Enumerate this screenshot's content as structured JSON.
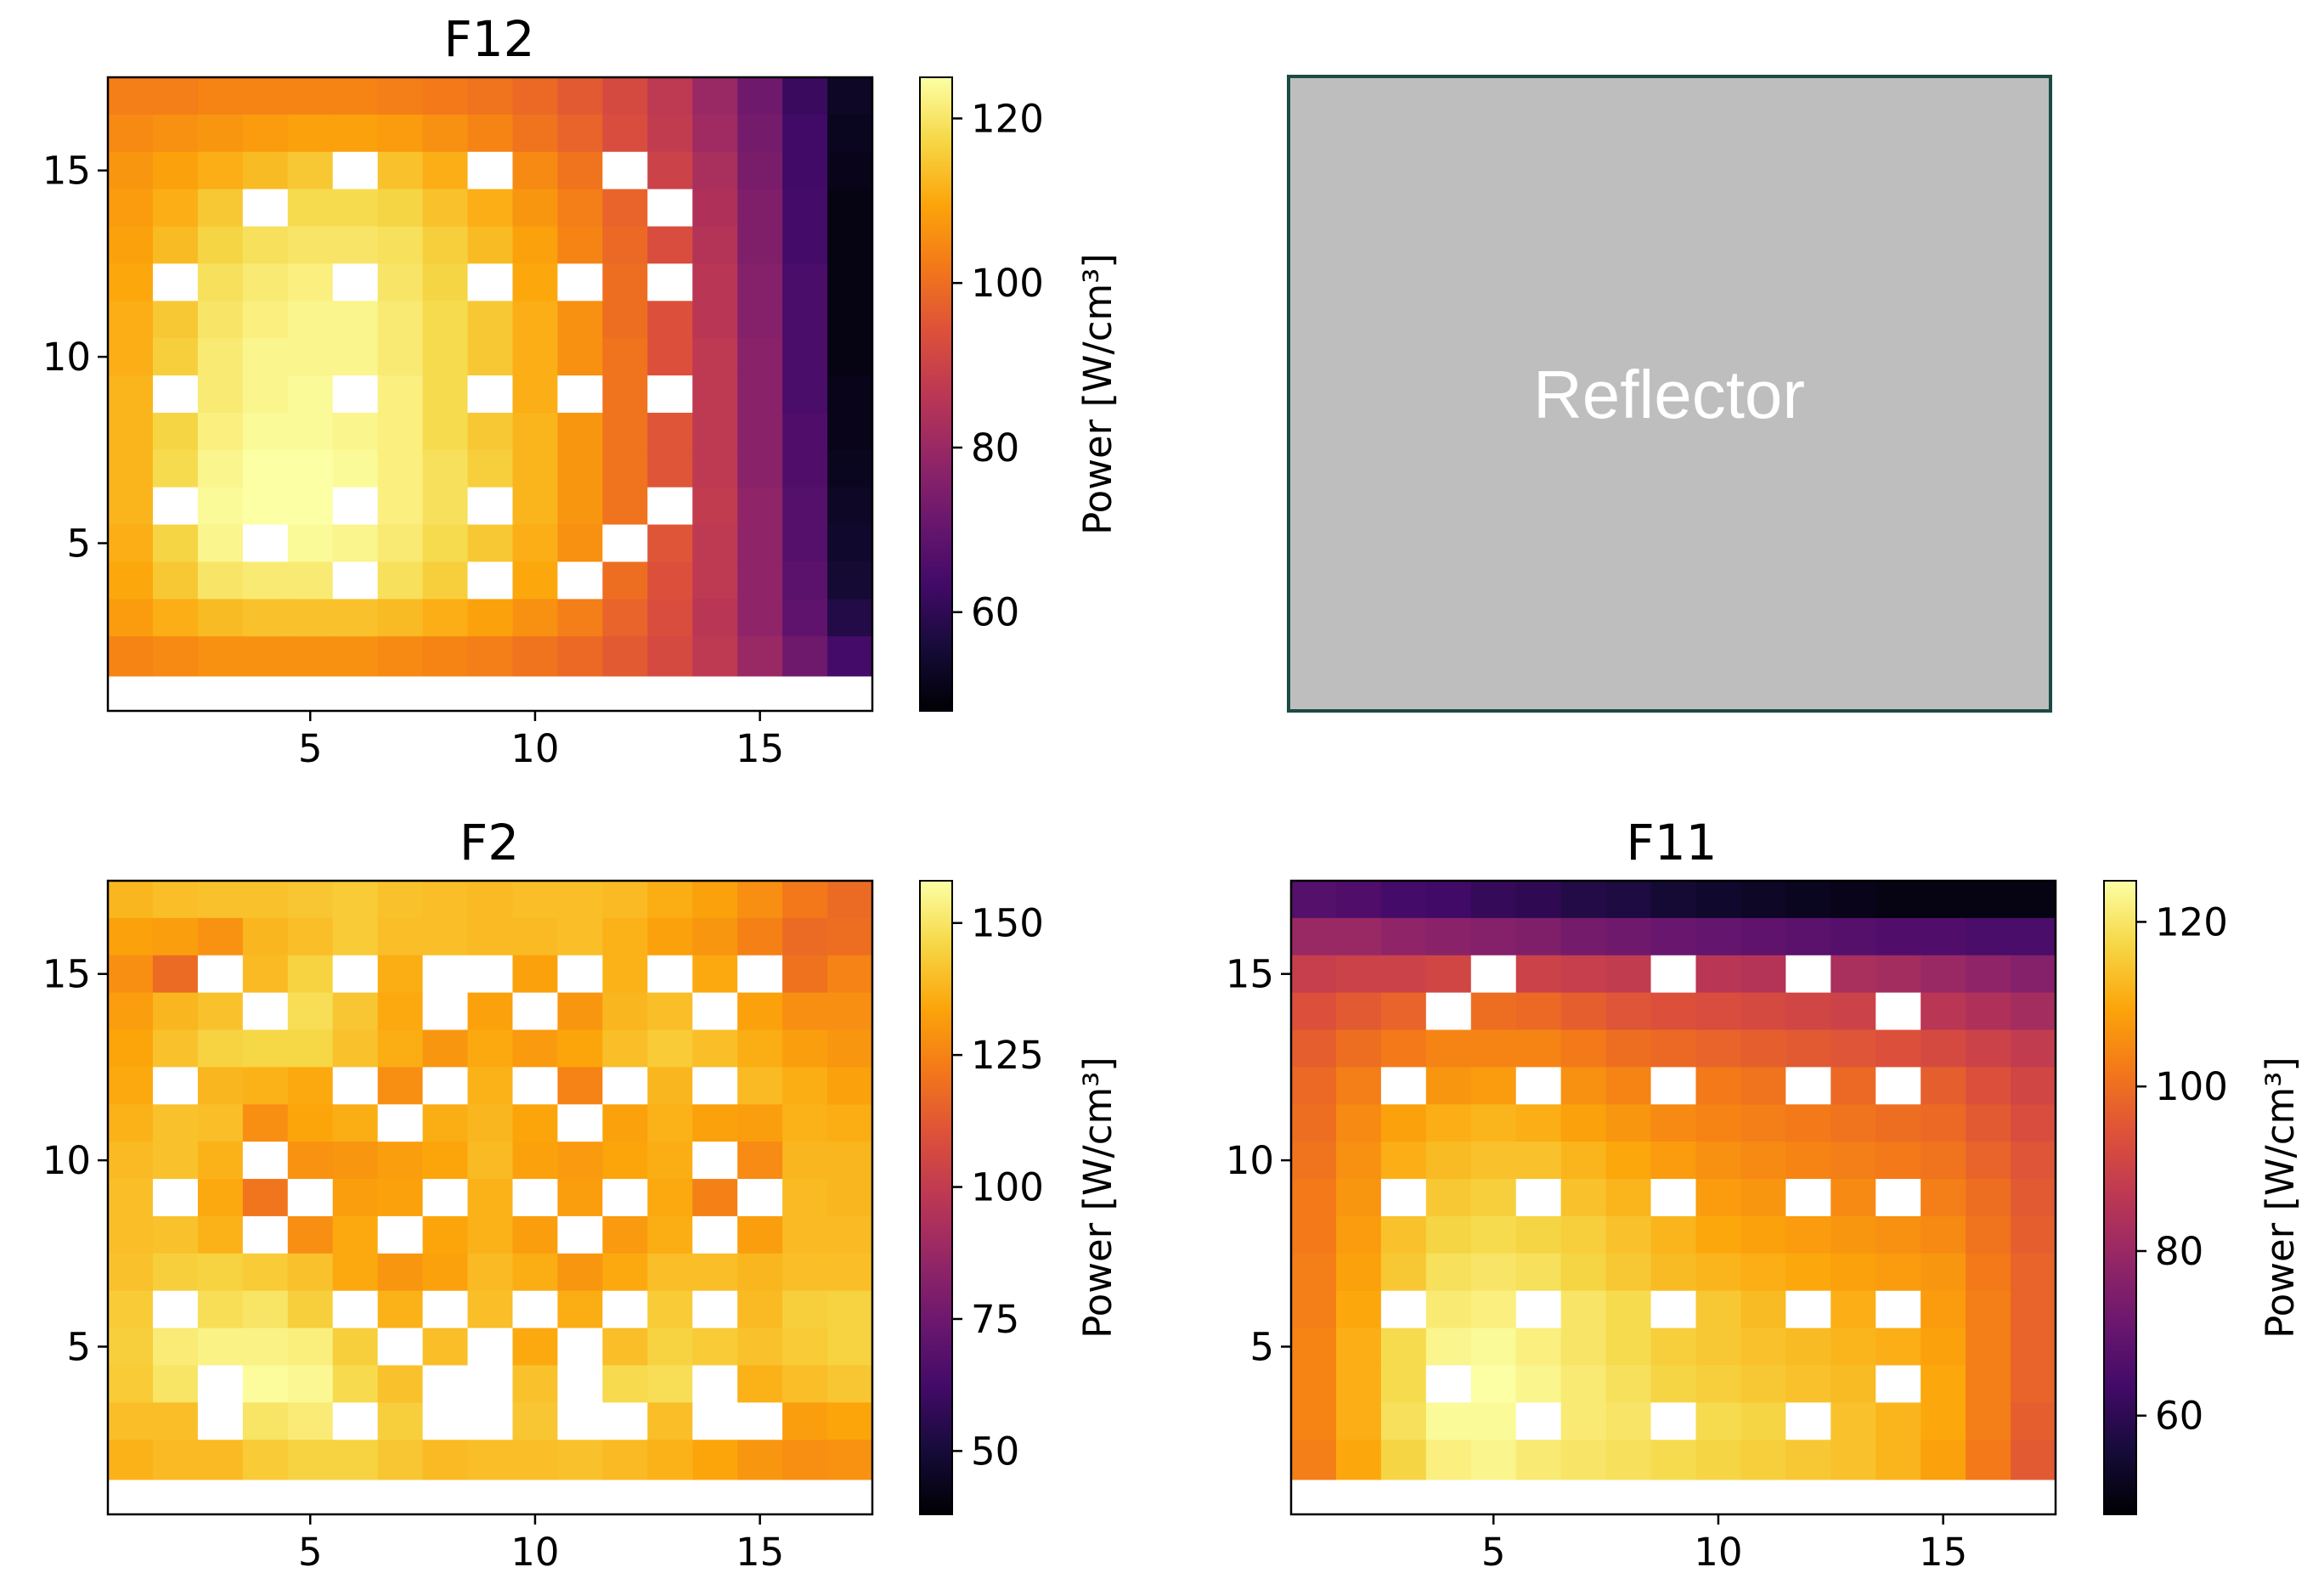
{
  "chart_data": [
    {
      "type": "heatmap",
      "title": "F12",
      "xlim": [
        0.5,
        17.5
      ],
      "ylim": [
        0.5,
        17.5
      ],
      "xticks": [
        5,
        10,
        15
      ],
      "yticks": [
        5,
        10,
        15
      ],
      "colormap": "inferno",
      "colorbar": {
        "label": "Power [W/cm³]",
        "min": 48,
        "max": 125,
        "ticks": [
          60,
          80,
          100,
          120
        ]
      },
      "grid": false,
      "rows_top_to_bottom": [
        [
          103,
          103,
          104,
          104,
          104,
          104,
          103,
          102,
          101,
          99,
          96,
          92,
          87,
          80,
          72,
          62,
          53
        ],
        [
          105,
          106,
          107,
          108,
          109,
          109,
          108,
          106,
          104,
          101,
          98,
          93,
          88,
          81,
          73,
          63,
          52
        ],
        [
          107,
          109,
          111,
          113,
          115,
          null,
          114,
          111,
          null,
          105,
          101,
          null,
          90,
          83,
          74,
          63,
          51
        ],
        [
          108,
          111,
          115,
          null,
          118,
          118,
          117,
          114,
          111,
          107,
          103,
          98,
          null,
          84,
          75,
          64,
          50
        ],
        [
          109,
          113,
          117,
          119,
          120,
          120,
          119,
          116,
          113,
          109,
          104,
          99,
          93,
          85,
          75,
          64,
          50
        ],
        [
          110,
          null,
          119,
          121,
          122,
          null,
          120,
          117,
          null,
          110,
          null,
          100,
          null,
          86,
          76,
          65,
          50
        ],
        [
          111,
          115,
          120,
          122,
          123,
          123,
          121,
          118,
          115,
          111,
          106,
          100,
          94,
          86,
          76,
          65,
          50
        ],
        [
          111,
          116,
          121,
          123,
          123,
          123,
          121,
          118,
          115,
          111,
          106,
          101,
          94,
          87,
          77,
          65,
          50
        ],
        [
          112,
          null,
          121,
          123,
          124,
          null,
          122,
          118,
          null,
          111,
          null,
          101,
          null,
          87,
          77,
          65,
          51
        ],
        [
          112,
          117,
          122,
          124,
          124,
          123,
          122,
          118,
          115,
          112,
          107,
          101,
          95,
          87,
          77,
          66,
          51
        ],
        [
          112,
          118,
          123,
          125,
          125,
          124,
          122,
          119,
          116,
          112,
          107,
          101,
          95,
          87,
          77,
          66,
          52
        ],
        [
          112,
          null,
          124,
          125,
          125,
          null,
          122,
          119,
          null,
          112,
          107,
          101,
          null,
          88,
          78,
          67,
          53
        ],
        [
          111,
          117,
          123,
          null,
          124,
          123,
          121,
          118,
          115,
          111,
          106,
          null,
          95,
          87,
          78,
          67,
          54
        ],
        [
          110,
          115,
          120,
          121,
          121,
          null,
          119,
          116,
          null,
          110,
          null,
          100,
          94,
          87,
          78,
          68,
          55
        ],
        [
          108,
          111,
          113,
          114,
          114,
          114,
          113,
          111,
          109,
          106,
          103,
          98,
          93,
          86,
          78,
          69,
          58
        ],
        [
          104,
          105,
          106,
          106,
          106,
          106,
          105,
          104,
          103,
          101,
          99,
          96,
          92,
          87,
          80,
          72,
          64
        ]
      ]
    },
    {
      "type": "heatmap",
      "title": "F2",
      "xlim": [
        0.5,
        17.5
      ],
      "ylim": [
        0.5,
        17.5
      ],
      "xticks": [
        5,
        10,
        15
      ],
      "yticks": [
        5,
        10,
        15
      ],
      "colormap": "inferno",
      "colorbar": {
        "label": "Power [W/cm³]",
        "min": 38,
        "max": 158,
        "ticks": [
          50,
          75,
          100,
          125,
          150
        ]
      },
      "grid": false,
      "rows_top_to_bottom": [
        [
          138,
          140,
          141,
          141,
          142,
          143,
          141,
          140,
          139,
          140,
          140,
          139,
          136,
          133,
          128,
          122,
          118
        ],
        [
          133,
          132,
          129,
          138,
          140,
          143,
          140,
          140,
          139,
          139,
          140,
          137,
          133,
          130,
          124,
          118,
          119
        ],
        [
          128,
          118,
          null,
          139,
          145,
          null,
          136,
          null,
          null,
          133,
          null,
          137,
          null,
          135,
          null,
          120,
          125
        ],
        [
          132,
          138,
          141,
          null,
          148,
          142,
          135,
          null,
          133,
          null,
          130,
          138,
          140,
          null,
          133,
          128,
          128
        ],
        [
          134,
          141,
          145,
          146,
          146,
          141,
          136,
          130,
          135,
          131,
          134,
          140,
          143,
          140,
          136,
          132,
          130
        ],
        [
          135,
          null,
          138,
          137,
          135,
          null,
          128,
          null,
          137,
          null,
          125,
          null,
          138,
          null,
          139,
          136,
          133
        ],
        [
          137,
          141,
          140,
          128,
          134,
          136,
          null,
          136,
          138,
          134,
          null,
          133,
          137,
          133,
          132,
          137,
          136
        ],
        [
          139,
          141,
          137,
          null,
          129,
          130,
          132,
          134,
          139,
          133,
          131,
          134,
          136,
          null,
          127,
          138,
          138
        ],
        [
          140,
          null,
          135,
          121,
          null,
          132,
          133,
          null,
          137,
          null,
          132,
          null,
          135,
          124,
          null,
          139,
          138
        ],
        [
          140,
          141,
          137,
          null,
          128,
          135,
          null,
          134,
          137,
          132,
          null,
          131,
          136,
          null,
          132,
          139,
          139
        ],
        [
          141,
          144,
          145,
          143,
          141,
          135,
          130,
          133,
          139,
          136,
          130,
          135,
          140,
          140,
          138,
          140,
          140
        ],
        [
          143,
          null,
          148,
          150,
          144,
          null,
          137,
          null,
          140,
          null,
          136,
          null,
          143,
          null,
          139,
          144,
          145
        ],
        [
          144,
          152,
          154,
          154,
          153,
          144,
          null,
          140,
          null,
          135,
          null,
          140,
          145,
          143,
          141,
          143,
          145
        ],
        [
          143,
          150,
          null,
          157,
          156,
          147,
          141,
          null,
          null,
          141,
          null,
          147,
          148,
          null,
          137,
          140,
          142
        ],
        [
          140,
          140,
          null,
          150,
          152,
          null,
          144,
          null,
          null,
          142,
          null,
          null,
          140,
          null,
          null,
          132,
          134
        ],
        [
          137,
          139,
          139,
          143,
          145,
          145,
          142,
          139,
          140,
          140,
          141,
          139,
          137,
          134,
          130,
          128,
          129
        ]
      ]
    },
    {
      "type": "heatmap",
      "title": "F11",
      "xlim": [
        0.5,
        17.5
      ],
      "ylim": [
        0.5,
        17.5
      ],
      "xticks": [
        5,
        10,
        15
      ],
      "yticks": [
        5,
        10,
        15
      ],
      "colormap": "inferno",
      "colorbar": {
        "label": "Power [W/cm³]",
        "min": 48,
        "max": 125,
        "ticks": [
          60,
          80,
          100,
          120
        ]
      },
      "grid": false,
      "rows_top_to_bottom": [
        [
          67,
          66,
          64,
          63,
          61,
          60,
          58,
          57,
          55,
          54,
          53,
          52,
          51,
          50,
          50,
          50,
          50
        ],
        [
          80,
          80,
          78,
          77,
          76,
          75,
          73,
          72,
          71,
          70,
          69,
          68,
          67,
          66,
          66,
          65,
          65
        ],
        [
          89,
          90,
          90,
          91,
          null,
          90,
          89,
          88,
          null,
          86,
          85,
          null,
          83,
          82,
          80,
          78,
          76
        ],
        [
          94,
          96,
          98,
          null,
          100,
          99,
          97,
          95,
          94,
          93,
          92,
          91,
          90,
          null,
          86,
          84,
          82
        ],
        [
          97,
          100,
          102,
          104,
          104,
          104,
          102,
          100,
          99,
          98,
          97,
          96,
          95,
          94,
          92,
          90,
          88
        ],
        [
          99,
          103,
          null,
          107,
          108,
          null,
          106,
          104,
          null,
          102,
          101,
          null,
          99,
          null,
          97,
          94,
          91
        ],
        [
          100,
          105,
          109,
          111,
          112,
          111,
          109,
          107,
          105,
          104,
          103,
          102,
          101,
          100,
          99,
          96,
          93
        ],
        [
          101,
          106,
          111,
          113,
          114,
          114,
          112,
          110,
          108,
          106,
          105,
          104,
          103,
          102,
          101,
          98,
          95
        ],
        [
          102,
          107,
          null,
          115,
          116,
          null,
          114,
          112,
          null,
          108,
          107,
          null,
          105,
          null,
          103,
          100,
          96
        ],
        [
          102,
          108,
          114,
          117,
          118,
          117,
          116,
          114,
          112,
          110,
          109,
          108,
          107,
          106,
          105,
          101,
          97
        ],
        [
          103,
          109,
          115,
          119,
          120,
          119,
          117,
          115,
          113,
          112,
          111,
          110,
          109,
          108,
          107,
          102,
          98
        ],
        [
          103,
          110,
          null,
          121,
          122,
          null,
          120,
          118,
          null,
          115,
          113,
          null,
          111,
          null,
          108,
          103,
          98
        ],
        [
          104,
          111,
          118,
          123,
          124,
          122,
          120,
          118,
          116,
          115,
          114,
          113,
          112,
          111,
          109,
          103,
          98
        ],
        [
          104,
          111,
          118,
          null,
          125,
          123,
          121,
          119,
          117,
          116,
          115,
          114,
          113,
          null,
          110,
          103,
          98
        ],
        [
          104,
          111,
          119,
          124,
          124,
          null,
          121,
          120,
          null,
          118,
          117,
          null,
          114,
          112,
          110,
          103,
          97
        ],
        [
          103,
          110,
          117,
          122,
          123,
          121,
          120,
          119,
          118,
          117,
          116,
          115,
          114,
          112,
          109,
          102,
          96
        ]
      ]
    }
  ],
  "reflector": {
    "label": "Reflector"
  }
}
